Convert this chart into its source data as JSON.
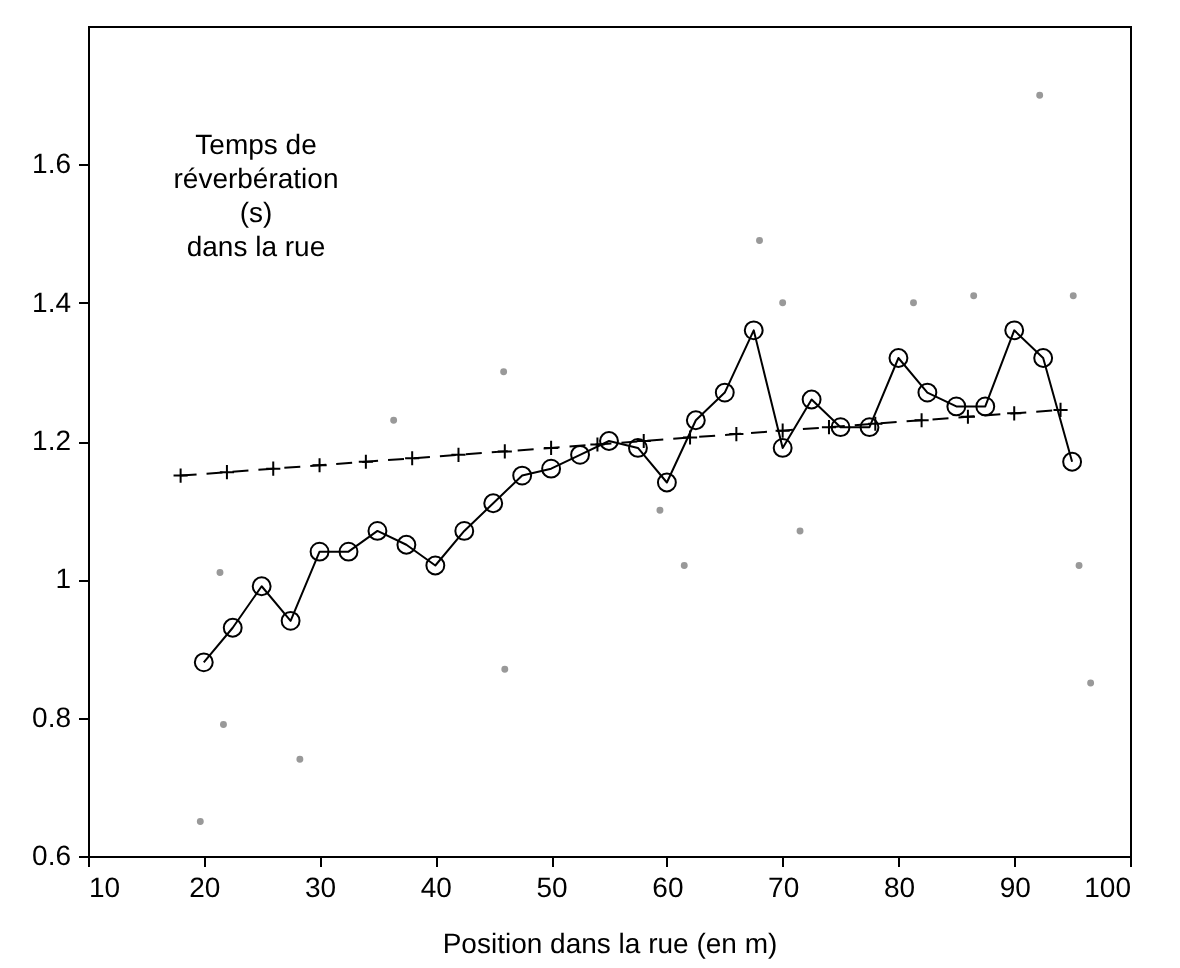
{
  "chart_data": {
    "type": "line",
    "xlabel": "Position dans la rue (en m)",
    "ylabel": "Temps de\nréverbération\n(s)\ndans la rue",
    "xlim": [
      10,
      100
    ],
    "xticks": [
      10,
      20,
      30,
      40,
      50,
      60,
      70,
      80,
      90,
      100
    ],
    "ylim": [
      0.6,
      1.8
    ],
    "yticks": [
      0.6,
      0.8,
      1,
      1.2,
      1.4,
      1.6
    ],
    "grid": false,
    "series": [
      {
        "type": "scatter",
        "color": "#999999",
        "marker": "circle",
        "x": [
          19.7,
          21.4,
          21.7,
          28.3,
          36.4,
          45.9,
          46.0,
          59.4,
          61.5,
          68.0,
          70.0,
          71.5,
          81.3,
          86.5,
          92.2,
          95.1,
          95.6,
          96.6
        ],
        "values": [
          0.65,
          1.01,
          0.79,
          0.74,
          1.23,
          1.3,
          0.87,
          1.1,
          1.02,
          1.49,
          1.4,
          1.07,
          1.4,
          1.41,
          1.7,
          1.41,
          1.02,
          0.85
        ]
      },
      {
        "color": "#000000",
        "marker": "circle",
        "line_style": "solid",
        "x": [
          20,
          22.5,
          25,
          27.5,
          30,
          32.5,
          35,
          37.5,
          40,
          42.5,
          45,
          47.5,
          50,
          52.5,
          55,
          57.5,
          60,
          62.5,
          65,
          67.5,
          70,
          72.5,
          75,
          77.5,
          80,
          82.5,
          85,
          87.5,
          90,
          92.5,
          95
        ],
        "values": [
          0.88,
          0.93,
          0.99,
          0.94,
          1.04,
          1.04,
          1.07,
          1.05,
          1.02,
          1.07,
          1.11,
          1.15,
          1.16,
          1.18,
          1.2,
          1.19,
          1.14,
          1.23,
          1.27,
          1.36,
          1.19,
          1.26,
          1.22,
          1.22,
          1.32,
          1.27,
          1.25,
          1.25,
          1.36,
          1.32,
          1.17
        ]
      },
      {
        "color": "#000000",
        "marker": "cross",
        "line_style": "dashed",
        "x": [
          18,
          22,
          26,
          30,
          34,
          38,
          42,
          46,
          50,
          54,
          58,
          62,
          66,
          70,
          74,
          78,
          82,
          86,
          90,
          94
        ],
        "values": [
          1.15,
          1.155,
          1.16,
          1.165,
          1.17,
          1.175,
          1.18,
          1.185,
          1.19,
          1.195,
          1.2,
          1.205,
          1.21,
          1.215,
          1.22,
          1.225,
          1.23,
          1.235,
          1.24,
          1.245
        ]
      }
    ]
  }
}
